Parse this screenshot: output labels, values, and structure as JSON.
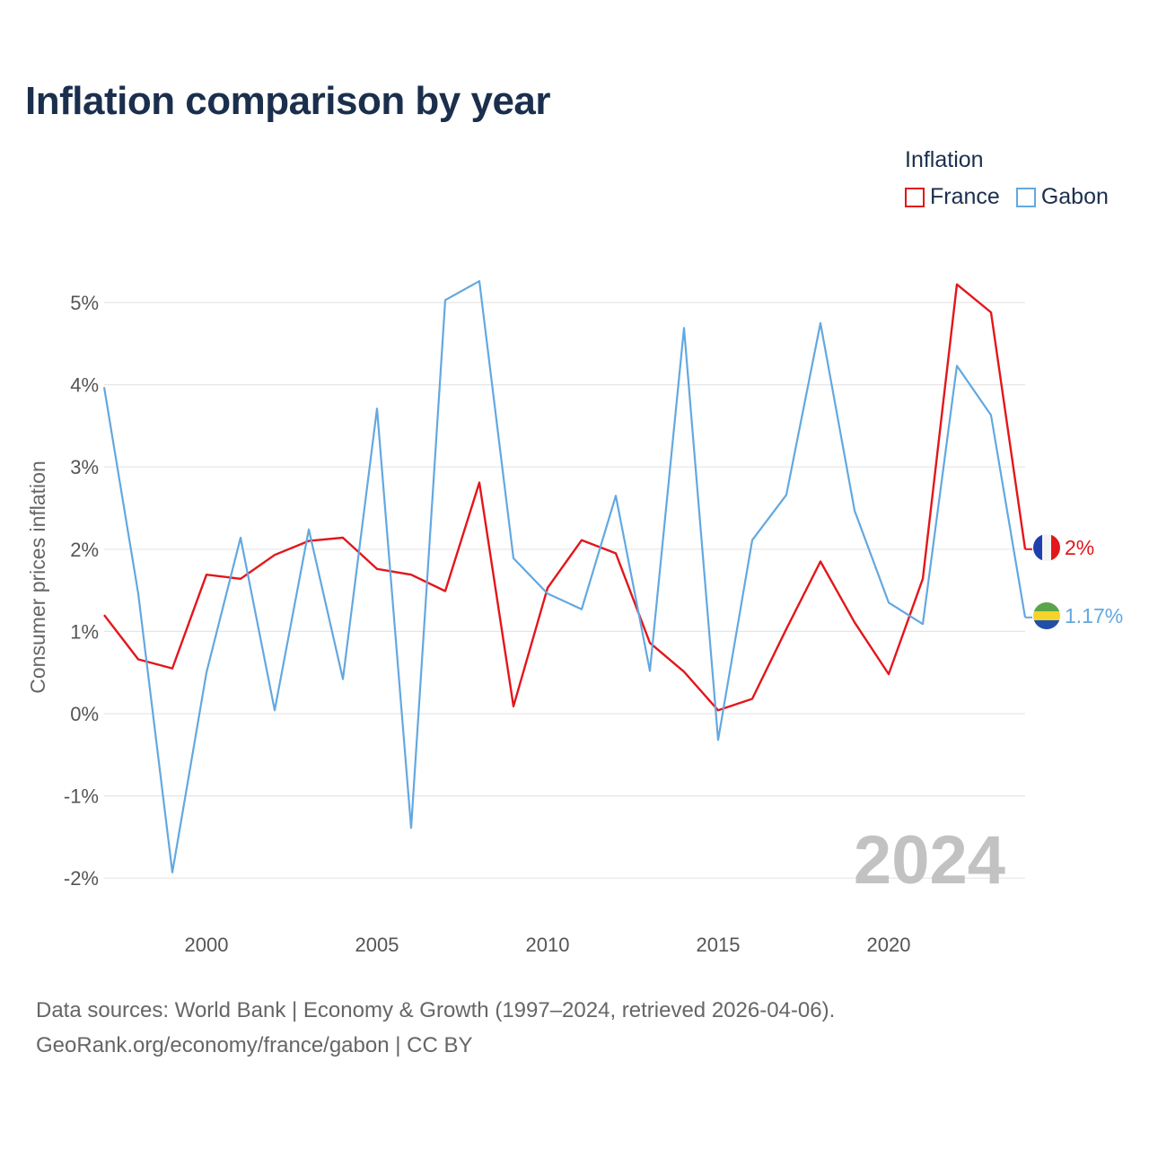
{
  "title": "Inflation comparison by year",
  "legend": {
    "title": "Inflation",
    "items": [
      {
        "label": "France",
        "color": "#e3161b"
      },
      {
        "label": "Gabon",
        "color": "#63a8e0"
      }
    ]
  },
  "watermark_year": "2024",
  "footer": {
    "line1": "Data sources: World Bank | Economy & Growth (1997–2024, retrieved 2026-04-06).",
    "line2": "GeoRank.org/economy/france/gabon | CC BY"
  },
  "chart_data": {
    "type": "line",
    "title": "Inflation comparison by year",
    "ylabel": "Consumer prices inflation",
    "xlabel": "",
    "xlim": [
      1997,
      2024
    ],
    "ylim": [
      -2.3,
      5.6
    ],
    "yticks": [
      -2,
      -1,
      0,
      1,
      2,
      3,
      4,
      5
    ],
    "ytick_labels": [
      "-2%",
      "-1%",
      "0%",
      "1%",
      "2%",
      "3%",
      "4%",
      "5%"
    ],
    "xticks": [
      2000,
      2005,
      2010,
      2015,
      2020
    ],
    "xtick_labels": [
      "2000",
      "2005",
      "2010",
      "2015",
      "2020"
    ],
    "grid": true,
    "legend_position": "top-right",
    "x": [
      1997,
      1998,
      1999,
      2000,
      2001,
      2002,
      2003,
      2004,
      2005,
      2006,
      2007,
      2008,
      2009,
      2010,
      2011,
      2012,
      2013,
      2014,
      2015,
      2016,
      2017,
      2018,
      2019,
      2020,
      2021,
      2022,
      2023,
      2024
    ],
    "series": [
      {
        "name": "France",
        "color": "#e3161b",
        "end_label": "2%",
        "values": [
          1.2,
          0.66,
          0.55,
          1.69,
          1.64,
          1.93,
          2.1,
          2.14,
          1.76,
          1.69,
          1.49,
          2.81,
          0.09,
          1.53,
          2.11,
          1.95,
          0.86,
          0.51,
          0.04,
          0.18,
          1.03,
          1.85,
          1.11,
          0.48,
          1.64,
          5.22,
          4.88,
          2.0
        ]
      },
      {
        "name": "Gabon",
        "color": "#63a8e0",
        "end_label": "1.17%",
        "values": [
          3.97,
          1.46,
          -1.93,
          0.5,
          2.14,
          0.04,
          2.24,
          0.42,
          3.71,
          -1.39,
          5.03,
          5.26,
          1.89,
          1.46,
          1.27,
          2.65,
          0.52,
          4.69,
          -0.32,
          2.11,
          2.66,
          4.75,
          2.47,
          1.35,
          1.09,
          4.23,
          3.63,
          1.17
        ]
      }
    ]
  }
}
